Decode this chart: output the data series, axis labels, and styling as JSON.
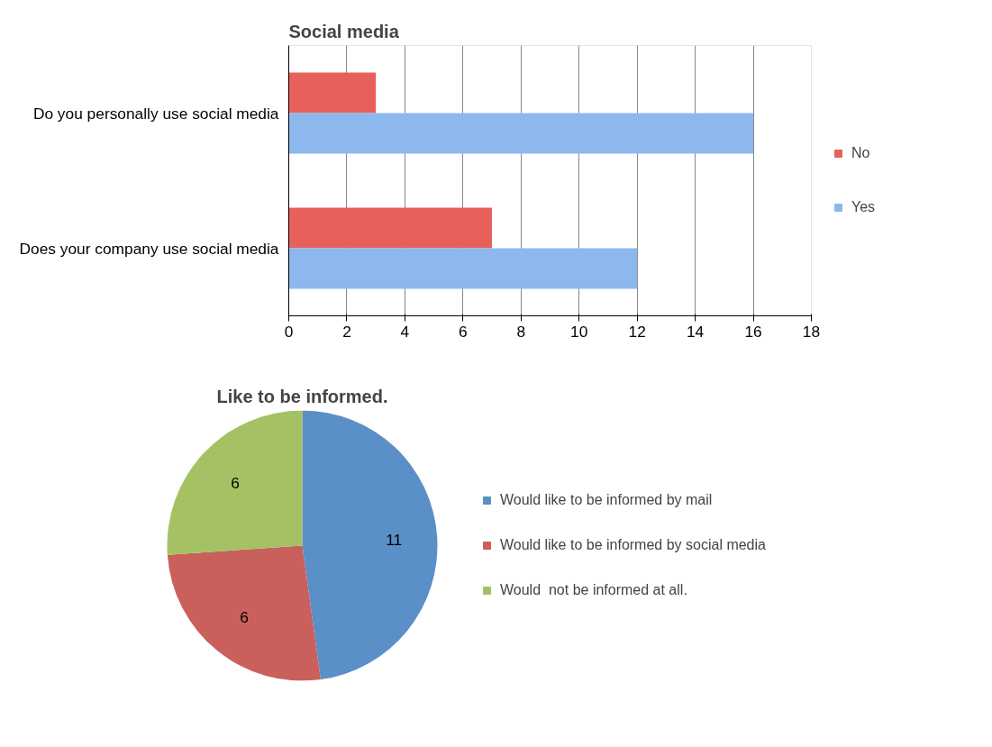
{
  "chart_data": [
    {
      "type": "bar",
      "title": "Social media",
      "orientation": "horizontal",
      "categories": [
        "Do you personally use social media",
        "Does your company use social media"
      ],
      "series": [
        {
          "name": "No",
          "color": "#e8605c",
          "values": [
            3,
            7
          ]
        },
        {
          "name": "Yes",
          "color": "#8db8ee",
          "values": [
            16,
            12
          ]
        }
      ],
      "xlim": [
        0,
        18
      ],
      "xticks": [
        0,
        2,
        4,
        6,
        8,
        10,
        12,
        14,
        16,
        18
      ],
      "grid": "x",
      "legend": "right"
    },
    {
      "type": "pie",
      "title": "Like to be informed.",
      "categories": [
        "Would like to be informed by mail",
        "Would like to be informed by social media",
        "Would  not be informed at all."
      ],
      "values": [
        11,
        6,
        6
      ],
      "colors": [
        "#5b8fc7",
        "#c9605c",
        "#a4c264"
      ],
      "data_labels": true,
      "legend": "right"
    }
  ]
}
